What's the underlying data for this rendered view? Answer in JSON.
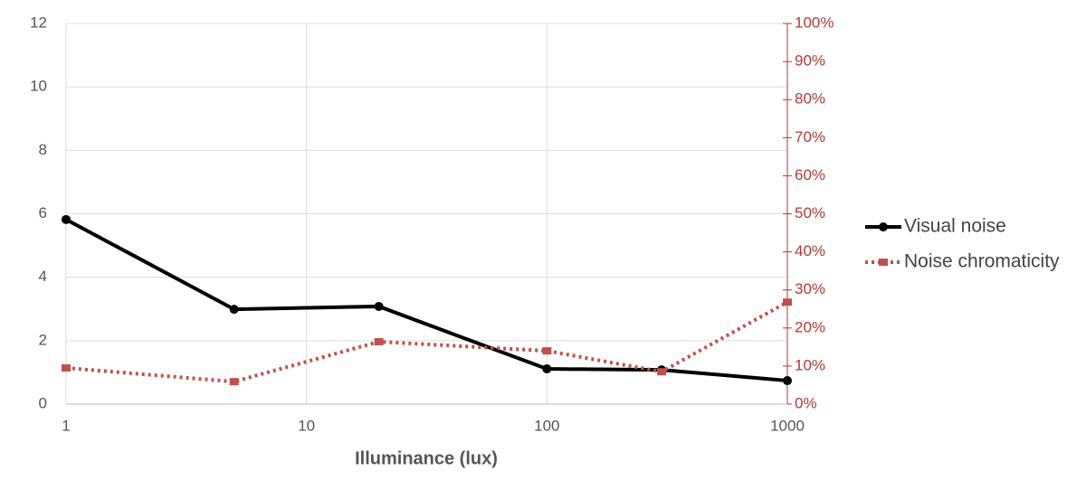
{
  "chart_data": {
    "type": "line",
    "x_label": "Illuminance (lux)",
    "x": [
      1,
      5,
      20,
      100,
      300,
      1000
    ],
    "xscale": "log",
    "xlim": [
      1,
      1000
    ],
    "xticks": [
      1,
      10,
      100,
      1000
    ],
    "ylim": [
      0,
      12
    ],
    "yticks": [
      0,
      2,
      4,
      6,
      8,
      10,
      12
    ],
    "y2lim": [
      0,
      100
    ],
    "y2ticks": [
      {
        "value": 0,
        "label": "0%"
      },
      {
        "value": 10,
        "label": "10%"
      },
      {
        "value": 20,
        "label": "20%"
      },
      {
        "value": 30,
        "label": "30%"
      },
      {
        "value": 40,
        "label": "40%"
      },
      {
        "value": 50,
        "label": "50%"
      },
      {
        "value": 60,
        "label": "60%"
      },
      {
        "value": 70,
        "label": "70%"
      },
      {
        "value": 80,
        "label": "80%"
      },
      {
        "value": 90,
        "label": "90%"
      },
      {
        "value": 100,
        "label": "100%"
      }
    ],
    "grid": true,
    "legend": "right",
    "series": [
      {
        "name": "Visual noise",
        "color": "#000000",
        "values": [
          5.82,
          2.99,
          3.08,
          1.11,
          1.08,
          0.74
        ]
      },
      {
        "name": "Noise chromaticity",
        "color": "#c0504d",
        "axis": "y2",
        "dashed": true,
        "values": [
          9.5,
          5.9,
          16.4,
          14.0,
          8.5,
          26.8
        ]
      }
    ]
  }
}
